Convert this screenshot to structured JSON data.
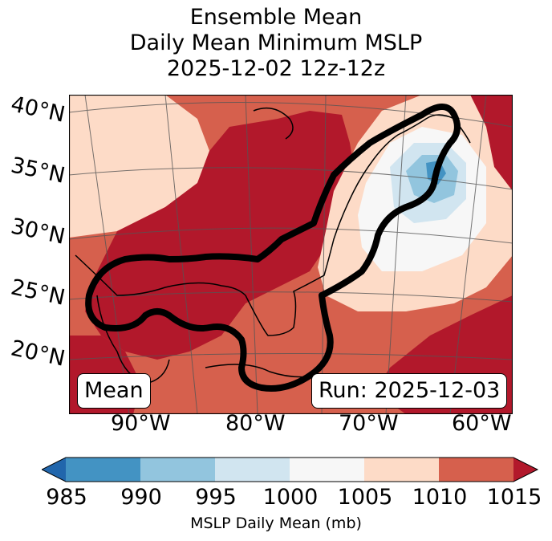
{
  "title": {
    "line1": "Ensemble Mean",
    "line2": "Daily Mean Minimum MSLP",
    "line3": "2025-12-02 12z-12z"
  },
  "lat_labels": [
    "40°N",
    "35°N",
    "30°N",
    "25°N",
    "20°N"
  ],
  "lon_labels": [
    "90°W",
    "80°W",
    "70°W",
    "60°W"
  ],
  "annotations": {
    "left": "Mean",
    "right": "Run: 2025-12-03"
  },
  "colorbar": {
    "label": "MSLP Daily Mean (mb)",
    "ticks": [
      "985",
      "990",
      "995",
      "1000",
      "1005",
      "1010",
      "1015"
    ],
    "colors": [
      "#2166ac",
      "#4393c3",
      "#92c5de",
      "#d1e5f0",
      "#f7f7f7",
      "#fddbc7",
      "#d6604d",
      "#b2182b"
    ],
    "extend": "both"
  },
  "map_data": {
    "variable": "MSLP daily mean (mb)",
    "lat_range": [
      15,
      41
    ],
    "lon_range": [
      -96,
      -59
    ],
    "features": [
      "coastlines",
      "country borders",
      "state borders",
      "graticule 5°",
      "outlined region (black contour)"
    ]
  }
}
